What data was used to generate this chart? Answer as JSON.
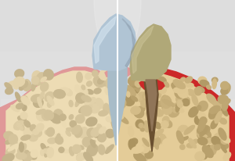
{
  "bg_color": "#d8d8d8",
  "fig_width": 3.0,
  "fig_height": 2.06,
  "dpi": 100,
  "left_gum_outer": "#e8a0a0",
  "left_gum_inner": "#f0c8b0",
  "right_gum_outer": "#cc2020",
  "right_gum_inner": "#e8d090",
  "bone_left": "#eddcb0",
  "bone_right": "#e0cc98",
  "tooth_healthy": "#b8ccd8",
  "tooth_unhealthy": "#b0a880",
  "tooth_tartar": "#7a6040",
  "divider": "#cccccc"
}
